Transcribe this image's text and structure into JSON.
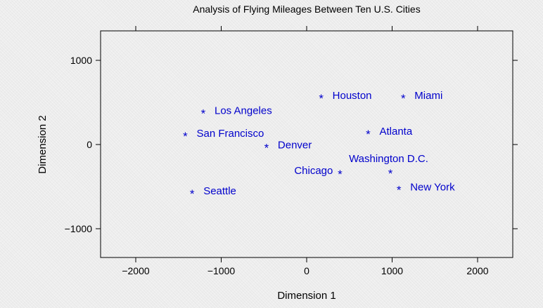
{
  "chart_data": {
    "type": "scatter",
    "title": "Analysis of Flying Mileages Between Ten U.S. Cities",
    "xlabel": "Dimension 1",
    "ylabel": "Dimension 2",
    "xlim": [
      -2400,
      2400
    ],
    "ylim": [
      -1350,
      1350
    ],
    "xticks": [
      -2000,
      -1000,
      0,
      1000,
      2000
    ],
    "xtick_labels": [
      "−2000",
      "−1000",
      "0",
      "1000",
      "2000"
    ],
    "yticks": [
      -1000,
      0,
      1000
    ],
    "ytick_labels": [
      "−1000",
      "0",
      "1000"
    ],
    "grid": false,
    "marker": "*",
    "marker_color": "#0000cc",
    "points": [
      {
        "label": "Los Angeles",
        "x": -1210,
        "y": 380
      },
      {
        "label": "San Francisco",
        "x": -1420,
        "y": 110
      },
      {
        "label": "Seattle",
        "x": -1340,
        "y": -575
      },
      {
        "label": "Denver",
        "x": -470,
        "y": -30
      },
      {
        "label": "Houston",
        "x": 170,
        "y": 560
      },
      {
        "label": "Chicago",
        "x": 390,
        "y": -340
      },
      {
        "label": "Atlanta",
        "x": 720,
        "y": 135
      },
      {
        "label": "Miami",
        "x": 1130,
        "y": 560
      },
      {
        "label": "Washington D.C.",
        "x": 980,
        "y": -335
      },
      {
        "label": "New York",
        "x": 1080,
        "y": -530
      }
    ]
  }
}
